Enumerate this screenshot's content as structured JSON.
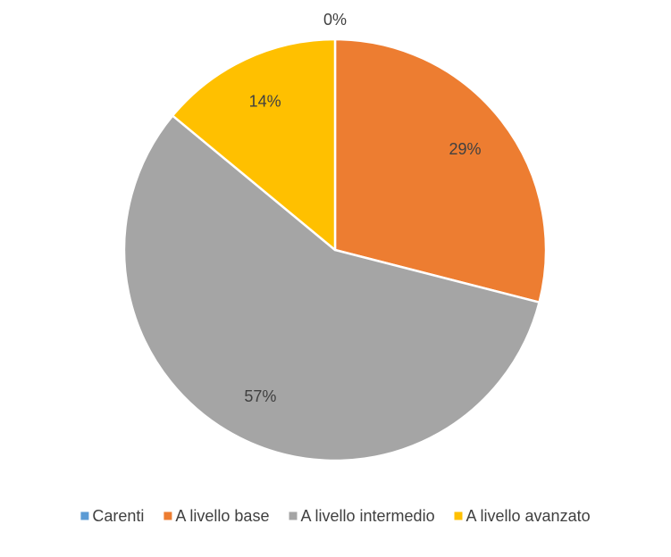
{
  "chart_data": {
    "type": "pie",
    "title": "",
    "slices": [
      {
        "label": "Carenti",
        "value": 0,
        "display": "0%",
        "color": "#5B9BD5"
      },
      {
        "label": "A livello base",
        "value": 29,
        "display": "29%",
        "color": "#ED7D31"
      },
      {
        "label": "A livello intermedio",
        "value": 57,
        "display": "57%",
        "color": "#A5A5A5"
      },
      {
        "label": "A livello avanzato",
        "value": 14,
        "display": "14%",
        "color": "#FFC000"
      }
    ],
    "legend_position": "bottom"
  }
}
